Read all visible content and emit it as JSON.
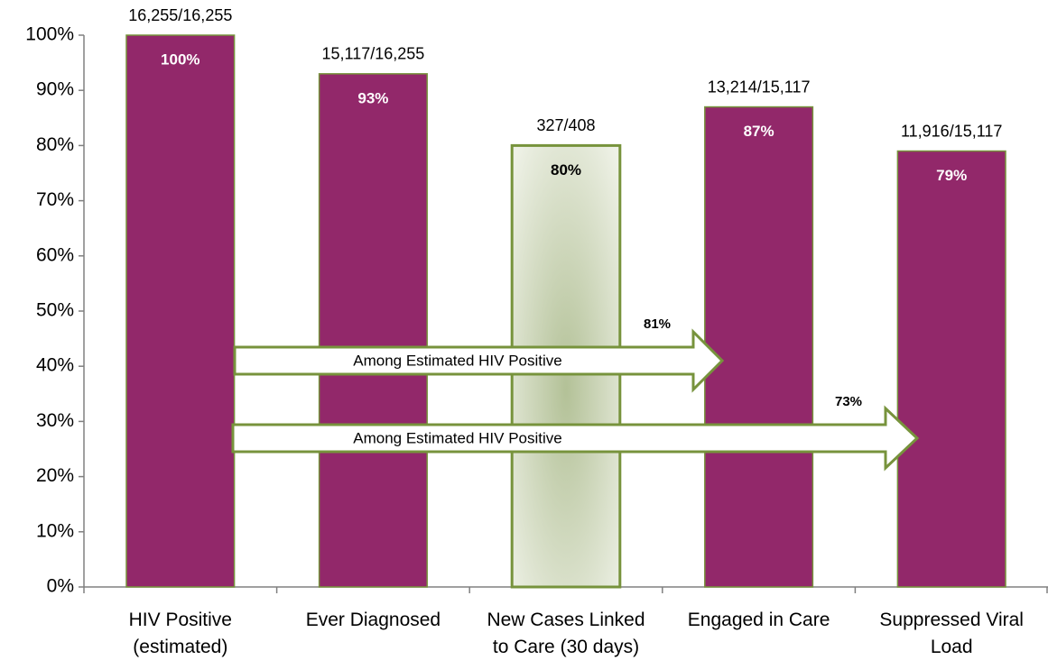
{
  "chart_data": {
    "type": "bar",
    "categories": [
      [
        "HIV Positive",
        "(estimated)"
      ],
      [
        "Ever Diagnosed"
      ],
      [
        "New Cases Linked",
        "to Care (30 days)"
      ],
      [
        "Engaged in Care"
      ],
      [
        "Suppressed Viral",
        "Load"
      ]
    ],
    "values": [
      100,
      93,
      80,
      87,
      79
    ],
    "value_labels": [
      "100%",
      "93%",
      "80%",
      "87%",
      "79%"
    ],
    "ratio_labels": [
      "16,255/16,255",
      "15,117/16,255",
      "327/408",
      "13,214/15,117",
      "11,916/15,117"
    ],
    "colors": [
      "#92286a",
      "#92286a",
      "#c9d3b4",
      "#92286a",
      "#92286a"
    ],
    "ylim": [
      0,
      100
    ],
    "yticks": [
      {
        "value": 0,
        "label": "0%"
      },
      {
        "value": 10,
        "label": "10%"
      },
      {
        "value": 20,
        "label": "20%"
      },
      {
        "value": 30,
        "label": "30%"
      },
      {
        "value": 40,
        "label": "40%"
      },
      {
        "value": 50,
        "label": "50%"
      },
      {
        "value": 60,
        "label": "60%"
      },
      {
        "value": 70,
        "label": "70%"
      },
      {
        "value": 80,
        "label": "80%"
      },
      {
        "value": 90,
        "label": "90%"
      },
      {
        "value": 100,
        "label": "100%"
      }
    ],
    "annotations": [
      {
        "text": "Among Estimated HIV Positive",
        "label": "81%"
      },
      {
        "text": "Among Estimated HIV Positive",
        "label": "73%"
      }
    ]
  }
}
